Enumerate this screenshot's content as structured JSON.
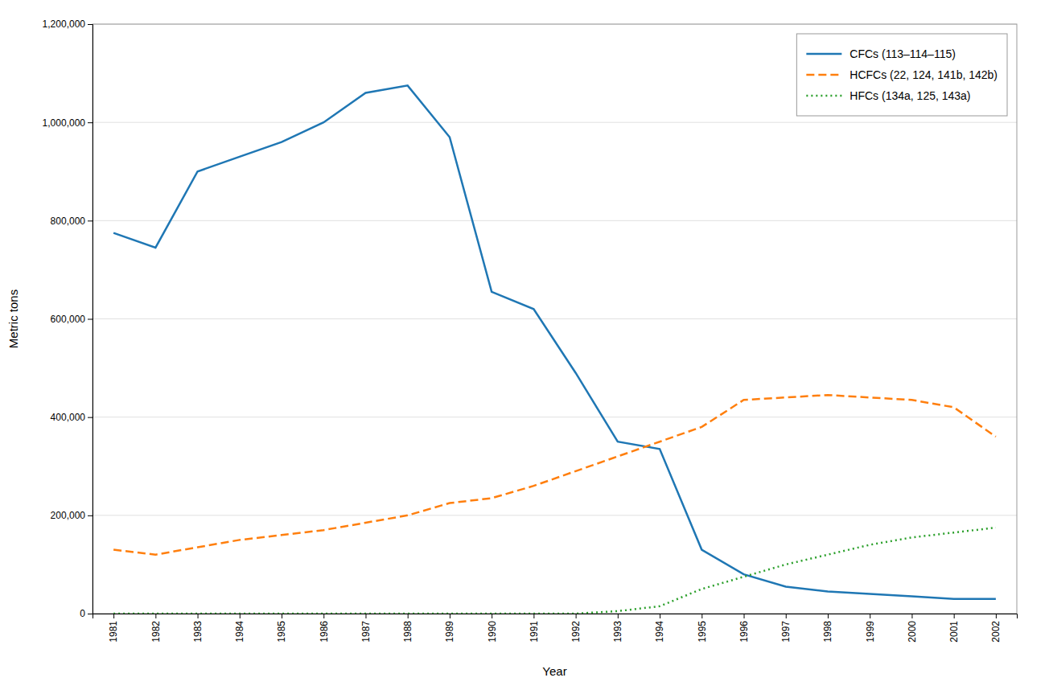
{
  "chart_data": {
    "type": "line",
    "xlabel": "Year",
    "ylabel": "Metric tons",
    "x": [
      1981,
      1982,
      1983,
      1984,
      1985,
      1986,
      1987,
      1988,
      1989,
      1990,
      1991,
      1992,
      1993,
      1994,
      1995,
      1996,
      1997,
      1998,
      1999,
      2000,
      2001,
      2002
    ],
    "series": [
      {
        "name": "CFCs (113–114–115)",
        "line_style": "solid",
        "values": [
          775000,
          745000,
          900000,
          930000,
          960000,
          1000000,
          1060000,
          1075000,
          970000,
          655000,
          620000,
          490000,
          350000,
          335000,
          130000,
          80000,
          55000,
          45000,
          40000,
          35000,
          30000,
          30000
        ]
      },
      {
        "name": "HCFCs (22, 124, 141b, 142b)",
        "line_style": "dashed",
        "values": [
          130000,
          120000,
          135000,
          150000,
          160000,
          170000,
          185000,
          200000,
          225000,
          235000,
          260000,
          290000,
          320000,
          350000,
          380000,
          435000,
          440000,
          445000,
          440000,
          435000,
          420000,
          360000
        ]
      },
      {
        "name": "HFCs (134a, 125, 143a)",
        "line_style": "dotted",
        "values": [
          0,
          0,
          0,
          0,
          0,
          0,
          0,
          0,
          0,
          0,
          0,
          0,
          5000,
          15000,
          50000,
          75000,
          100000,
          120000,
          140000,
          155000,
          165000,
          175000
        ]
      }
    ],
    "xlim": [
      1980.5,
      2002.5
    ],
    "xticks": [
      1981,
      1982,
      1983,
      1984,
      1985,
      1986,
      1987,
      1988,
      1989,
      1990,
      1991,
      1992,
      1993,
      1994,
      1995,
      1996,
      1997,
      1998,
      1999,
      2000,
      2001,
      2002
    ],
    "ylim": [
      0,
      1200000
    ],
    "yticks": [
      0,
      {
        "value": 200000,
        "label": "200,000"
      },
      {
        "value": 400000,
        "label": "400,000"
      },
      {
        "value": 600000,
        "label": "600,000"
      },
      {
        "value": 800000,
        "label": "800,000"
      },
      {
        "value": 1000000,
        "label": "1,000,000"
      },
      {
        "value": 1200000,
        "label": "1,200,000"
      }
    ],
    "grid": true,
    "legend": "upper right"
  }
}
